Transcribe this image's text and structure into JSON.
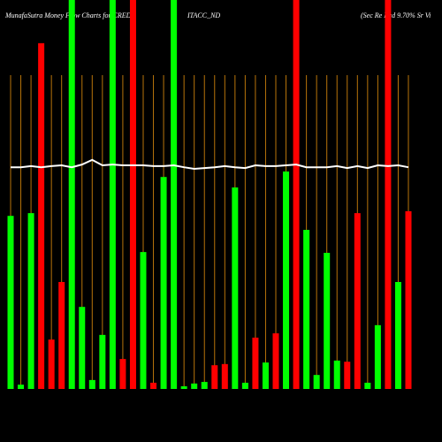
{
  "chart_data": {
    "type": "bar",
    "title": [
      "MunafaSutra  Money Flow  Charts for CRED",
      "ITACC_ND",
      "(Sec Re  Ncd 9.70% Sr Vi"
    ],
    "categories": [
      null,
      null,
      null,
      null,
      null,
      null,
      null,
      null,
      null,
      null,
      null,
      null,
      null,
      null,
      null,
      null,
      null,
      null,
      null,
      null,
      null,
      null,
      null,
      null,
      null,
      null,
      null,
      null,
      null,
      null,
      null,
      null,
      null,
      null,
      null,
      null,
      null,
      null,
      null,
      null
    ],
    "values": [
      44.5,
      1.1,
      45.2,
      88.9,
      12.7,
      27.5,
      100,
      21.1,
      2.3,
      13.9,
      100,
      7.7,
      100,
      35.2,
      1.6,
      54.5,
      100,
      0.7,
      1.4,
      1.8,
      6.1,
      6.4,
      51.8,
      1.6,
      13.2,
      6.8,
      14.3,
      55.9,
      100,
      40.9,
      3.6,
      35,
      7.3,
      7,
      45.2,
      1.6,
      16.4,
      100,
      27.5,
      45.7
    ],
    "colors": [
      "#00ff00",
      "#00ff00",
      "#00ff00",
      "#ff0000",
      "#ff0000",
      "#ff0000",
      "#00ff00",
      "#00ff00",
      "#00ff00",
      "#00ff00",
      "#00ff00",
      "#ff0000",
      "#ff0000",
      "#00ff00",
      "#ff0000",
      "#00ff00",
      "#00ff00",
      "#00ff00",
      "#00ff00",
      "#00ff00",
      "#ff0000",
      "#ff0000",
      "#00ff00",
      "#00ff00",
      "#ff0000",
      "#00ff00",
      "#ff0000",
      "#00ff00",
      "#ff0000",
      "#00ff00",
      "#00ff00",
      "#00ff00",
      "#00ff00",
      "#ff0000",
      "#ff0000",
      "#00ff00",
      "#00ff00",
      "#ff0000",
      "#00ff00",
      "#ff0000"
    ],
    "line": {
      "color": "#ffffff",
      "values": [
        57.0,
        57.0,
        57.3,
        57.0,
        57.3,
        57.5,
        57.0,
        57.7,
        58.9,
        57.5,
        57.7,
        57.5,
        57.5,
        57.5,
        57.3,
        57.3,
        57.5,
        57.0,
        56.6,
        56.8,
        57.0,
        57.3,
        57.0,
        56.8,
        57.5,
        57.3,
        57.3,
        57.5,
        57.7,
        57.0,
        57.0,
        57.0,
        57.3,
        56.8,
        57.3,
        56.8,
        57.5,
        57.3,
        57.5,
        57.0
      ]
    },
    "ylim": [
      0,
      100
    ],
    "grid": true,
    "grid_color": "#b8740a"
  }
}
